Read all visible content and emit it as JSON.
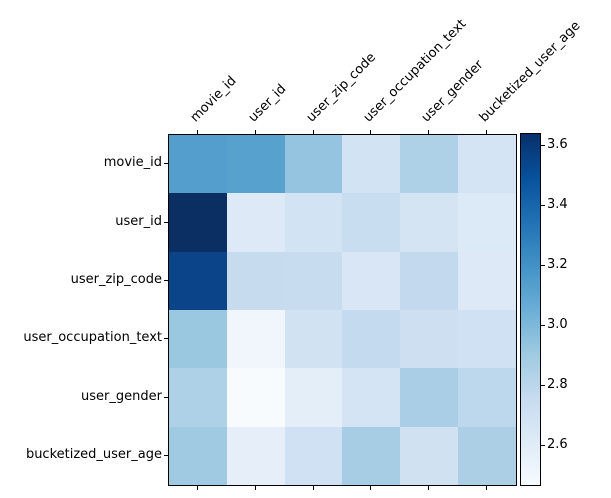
{
  "figure": {
    "background": "#ffffff",
    "axes_border_color": "#000000",
    "tick_color": "#000000",
    "label_color": "#000000"
  },
  "chart_data": {
    "type": "heatmap",
    "title": "",
    "xlabel": "",
    "ylabel": "",
    "colormap": "Blues",
    "row_labels": [
      "movie_id",
      "user_id",
      "user_zip_code",
      "user_occupation_text",
      "user_gender",
      "bucketized_user_age"
    ],
    "col_labels": [
      "movie_id",
      "user_id",
      "user_zip_code",
      "user_occupation_text",
      "user_gender",
      "bucketized_user_age"
    ],
    "values": [
      [
        3.13,
        3.13,
        2.94,
        2.69,
        2.85,
        2.68
      ],
      [
        3.63,
        2.62,
        2.69,
        2.75,
        2.68,
        2.63
      ],
      [
        3.54,
        2.76,
        2.76,
        2.66,
        2.78,
        2.62
      ],
      [
        2.92,
        2.51,
        2.7,
        2.77,
        2.73,
        2.71
      ],
      [
        2.84,
        2.47,
        2.59,
        2.68,
        2.87,
        2.79
      ],
      [
        2.9,
        2.57,
        2.71,
        2.87,
        2.71,
        2.85
      ]
    ],
    "cell_colors": [
      [
        "#549ecd",
        "#57a1cf",
        "#94c4df",
        "#d2e3f3",
        "#afd1e7",
        "#d4e4f4"
      ],
      [
        "#0b2e63",
        "#dde9f6",
        "#d2e3f3",
        "#c9ddf0",
        "#d4e4f3",
        "#dce9f6"
      ],
      [
        "#0c4489",
        "#c6dbee",
        "#c7dcef",
        "#d8e6f5",
        "#c3d9ee",
        "#dde9f6"
      ],
      [
        "#9ac8e1",
        "#f0f6fc",
        "#d1e2f3",
        "#c4daee",
        "#cddff1",
        "#cfe1f2"
      ],
      [
        "#afd1e7",
        "#f8fbfe",
        "#e4eef8",
        "#d4e4f4",
        "#a9cee5",
        "#bdd7ec"
      ],
      [
        "#9fcae2",
        "#e6eff9",
        "#cfe1f2",
        "#a7cde4",
        "#d0e2f2",
        "#accfe6"
      ]
    ],
    "vmin": 2.47,
    "vmax": 3.64,
    "grid": false,
    "legend_position": "colorbar-right",
    "colorbar": {
      "tick_labels": [
        "3.6",
        "3.4",
        "3.2",
        "3.0",
        "2.8",
        "2.6"
      ],
      "tick_values": [
        3.6,
        3.4,
        3.2,
        3.0,
        2.8,
        2.6
      ],
      "gradient_top_to_bottom": [
        "#08306b",
        "#08519c",
        "#2171b5",
        "#4292c6",
        "#6baed6",
        "#9ecae1",
        "#c6dbef",
        "#deebf7",
        "#f7fbff"
      ]
    }
  }
}
